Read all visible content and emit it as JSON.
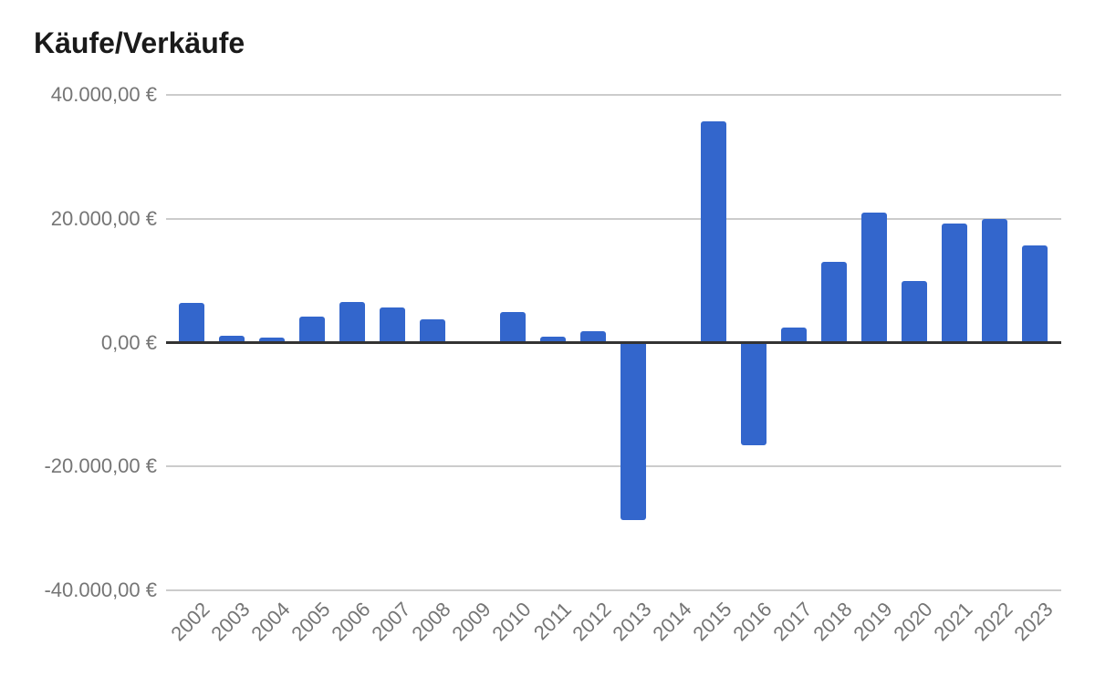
{
  "chart": {
    "title": "Käufe/Verkäufe",
    "y_tick_labels": [
      "40.000,00 €",
      "20.000,00 €",
      "0,00 €",
      "-20.000,00 €",
      "-40.000,00 €"
    ],
    "colors": {
      "bar": "#3366cc",
      "gridline": "#cccccc",
      "zero_line": "#333333",
      "axis_text": "#757575",
      "title_text": "#1a1a1a",
      "background": "#ffffff"
    }
  },
  "chart_data": {
    "type": "bar",
    "title": "Käufe/Verkäufe",
    "categories": [
      "2002",
      "2003",
      "2004",
      "2005",
      "2006",
      "2007",
      "2008",
      "2009",
      "2010",
      "2011",
      "2012",
      "2013",
      "2014",
      "2015",
      "2016",
      "2017",
      "2018",
      "2019",
      "2020",
      "2021",
      "2022",
      "2023"
    ],
    "values": [
      6400,
      1100,
      800,
      4200,
      6600,
      5600,
      3700,
      0,
      4900,
      1000,
      1800,
      -28400,
      0,
      35700,
      -16300,
      2500,
      13000,
      21000,
      10000,
      19300,
      20000,
      15700
    ],
    "xlabel": "",
    "ylabel": "",
    "ylim": [
      -40000,
      40000
    ],
    "y_ticks": [
      40000,
      20000,
      0,
      -20000,
      -40000
    ],
    "grid": true,
    "legend": "none",
    "value_unit": "EUR",
    "value_format": "de-DE #.##0,00 €",
    "x_label_rotation_deg": -45
  }
}
